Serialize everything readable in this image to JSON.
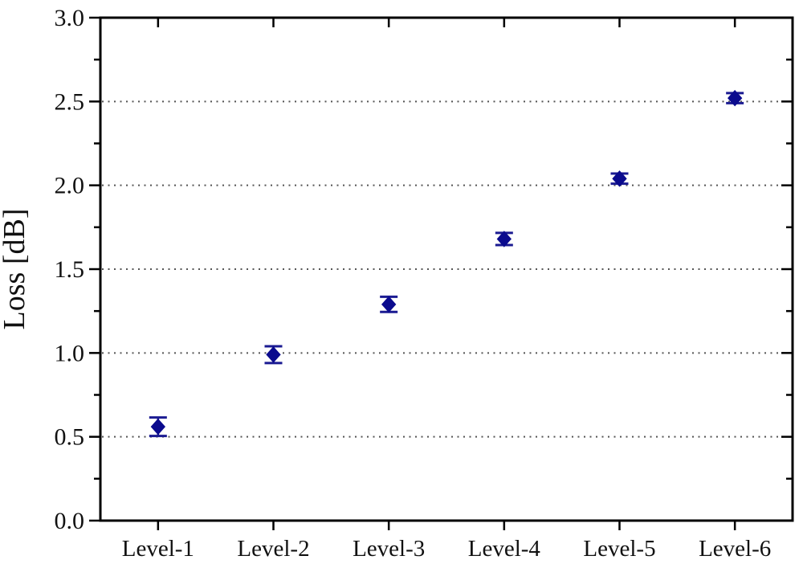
{
  "figure": {
    "background": "#ffffff",
    "title": ""
  },
  "chart_data": {
    "type": "scatter",
    "title": "",
    "xlabel": "",
    "ylabel": "Loss [dB]",
    "categories": [
      "Level-1",
      "Level-2",
      "Level-3",
      "Level-4",
      "Level-5",
      "Level-6"
    ],
    "series": [
      {
        "name": "Loss",
        "marker": "diamond",
        "values": [
          0.56,
          0.99,
          1.29,
          1.68,
          2.04,
          2.52
        ],
        "errors": [
          0.055,
          0.05,
          0.045,
          0.036,
          0.03,
          0.03
        ]
      }
    ],
    "ylim": [
      0.0,
      3.0
    ],
    "yticks": [
      0.0,
      0.5,
      1.0,
      1.5,
      2.0,
      2.5,
      3.0
    ],
    "ytick_labels": [
      "0.0",
      "0.5",
      "1.0",
      "1.5",
      "2.0",
      "2.5",
      "3.0"
    ],
    "yminor_step": 0.25,
    "gridlines_at": [
      0.5,
      1.0,
      1.5,
      2.0,
      2.5
    ],
    "grid_style": "dotted",
    "legend": "none",
    "colors": {
      "marker": "#0b0b8e",
      "error_bar": "#1b1b92",
      "grid": "#555555",
      "axis": "#000000",
      "text": "#111111"
    }
  }
}
